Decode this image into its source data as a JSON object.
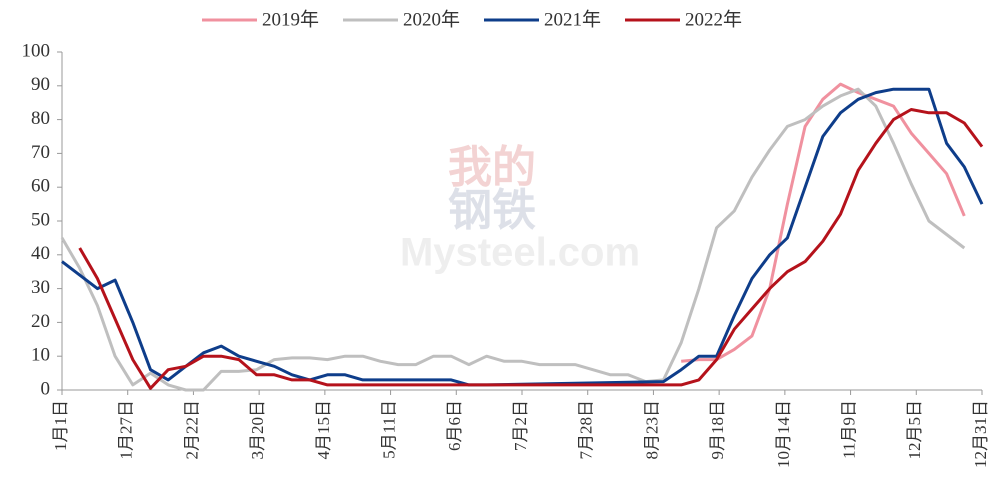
{
  "chart_data": {
    "type": "line",
    "watermark": [
      "我的",
      "钢铁",
      "Mysteel.com"
    ],
    "xlim": [
      0,
      364
    ],
    "xticks": [
      {
        "value": 0,
        "label": "1月1日"
      },
      {
        "value": 26,
        "label": "1月27日"
      },
      {
        "value": 52,
        "label": "2月22日"
      },
      {
        "value": 78,
        "label": "3月20日"
      },
      {
        "value": 104,
        "label": "4月15日"
      },
      {
        "value": 130,
        "label": "5月11日"
      },
      {
        "value": 156,
        "label": "6月6日"
      },
      {
        "value": 182,
        "label": "7月2日"
      },
      {
        "value": 208,
        "label": "7月28日"
      },
      {
        "value": 234,
        "label": "8月23日"
      },
      {
        "value": 260,
        "label": "9月18日"
      },
      {
        "value": 286,
        "label": "10月14日"
      },
      {
        "value": 312,
        "label": "11月9日"
      },
      {
        "value": 338,
        "label": "12月5日"
      },
      {
        "value": 364,
        "label": "12月31日"
      }
    ],
    "ylim": [
      0,
      100
    ],
    "yticks": [
      0,
      10,
      20,
      30,
      40,
      50,
      60,
      70,
      80,
      90,
      100
    ],
    "series": [
      {
        "name": "2019年",
        "color": "#f0919f",
        "x": [
          245,
          252,
          259,
          266,
          273,
          280,
          287,
          294,
          301,
          308,
          315,
          322,
          329,
          336,
          343,
          350,
          357
        ],
        "values": [
          8.5,
          9,
          9,
          12,
          16,
          30,
          55,
          78,
          86,
          90.5,
          88,
          86,
          84,
          76,
          70,
          64,
          51.5
        ]
      },
      {
        "name": "2020年",
        "color": "#bfbfbf",
        "x": [
          0,
          7,
          14,
          21,
          28,
          35,
          42,
          49,
          56,
          63,
          70,
          77,
          84,
          91,
          98,
          105,
          112,
          119,
          126,
          133,
          140,
          147,
          154,
          161,
          168,
          175,
          182,
          189,
          196,
          203,
          210,
          217,
          224,
          231,
          238,
          245,
          252,
          259,
          266,
          273,
          280,
          287,
          294,
          301,
          308,
          315,
          322,
          329,
          336,
          343,
          350,
          357
        ],
        "values": [
          45,
          36,
          25,
          10,
          1.5,
          5,
          1.5,
          0,
          0,
          5.5,
          5.5,
          6,
          9,
          9.5,
          9.5,
          9,
          10,
          10,
          8.5,
          7.5,
          7.5,
          10,
          10,
          7.5,
          10,
          8.5,
          8.5,
          7.5,
          7.5,
          7.5,
          6,
          4.5,
          4.5,
          2.5,
          3,
          14,
          30,
          48,
          53,
          63,
          71,
          78,
          80,
          84,
          87,
          89,
          84,
          73,
          61,
          50,
          46,
          42
        ]
      },
      {
        "name": "2021年",
        "color": "#0e3d8a",
        "x": [
          0,
          14,
          21,
          28,
          35,
          42,
          49,
          56,
          63,
          70,
          77,
          84,
          91,
          98,
          105,
          112,
          119,
          126,
          133,
          140,
          147,
          154,
          161,
          168,
          238,
          245,
          252,
          259,
          266,
          273,
          280,
          287,
          294,
          301,
          308,
          315,
          322,
          329,
          336,
          343,
          350,
          357,
          364
        ],
        "values": [
          38,
          30,
          32.5,
          20,
          6,
          3,
          7,
          11,
          13,
          10,
          8.5,
          7,
          4.5,
          3,
          4.5,
          4.5,
          3,
          3,
          3,
          3,
          3,
          3,
          1.5,
          1.5,
          2.5,
          6,
          10,
          10,
          22,
          33,
          40,
          45,
          60,
          75,
          82,
          86,
          88,
          89,
          89,
          89,
          73,
          66,
          55
        ]
      },
      {
        "name": "2022年",
        "color": "#b5121b",
        "x": [
          7,
          14,
          21,
          28,
          35,
          42,
          49,
          56,
          63,
          70,
          77,
          84,
          91,
          98,
          105,
          245,
          252,
          259,
          266,
          273,
          280,
          287,
          294,
          301,
          308,
          315,
          322,
          329,
          336,
          343,
          350,
          357,
          364
        ],
        "values": [
          42,
          33,
          21,
          9,
          0.5,
          6,
          7,
          10,
          10,
          9,
          4.5,
          4.5,
          3,
          3,
          1.5,
          1.5,
          3,
          9,
          18,
          24,
          30,
          35,
          38,
          44,
          52,
          65,
          73,
          80,
          83,
          82,
          82,
          79,
          72
        ]
      }
    ]
  }
}
